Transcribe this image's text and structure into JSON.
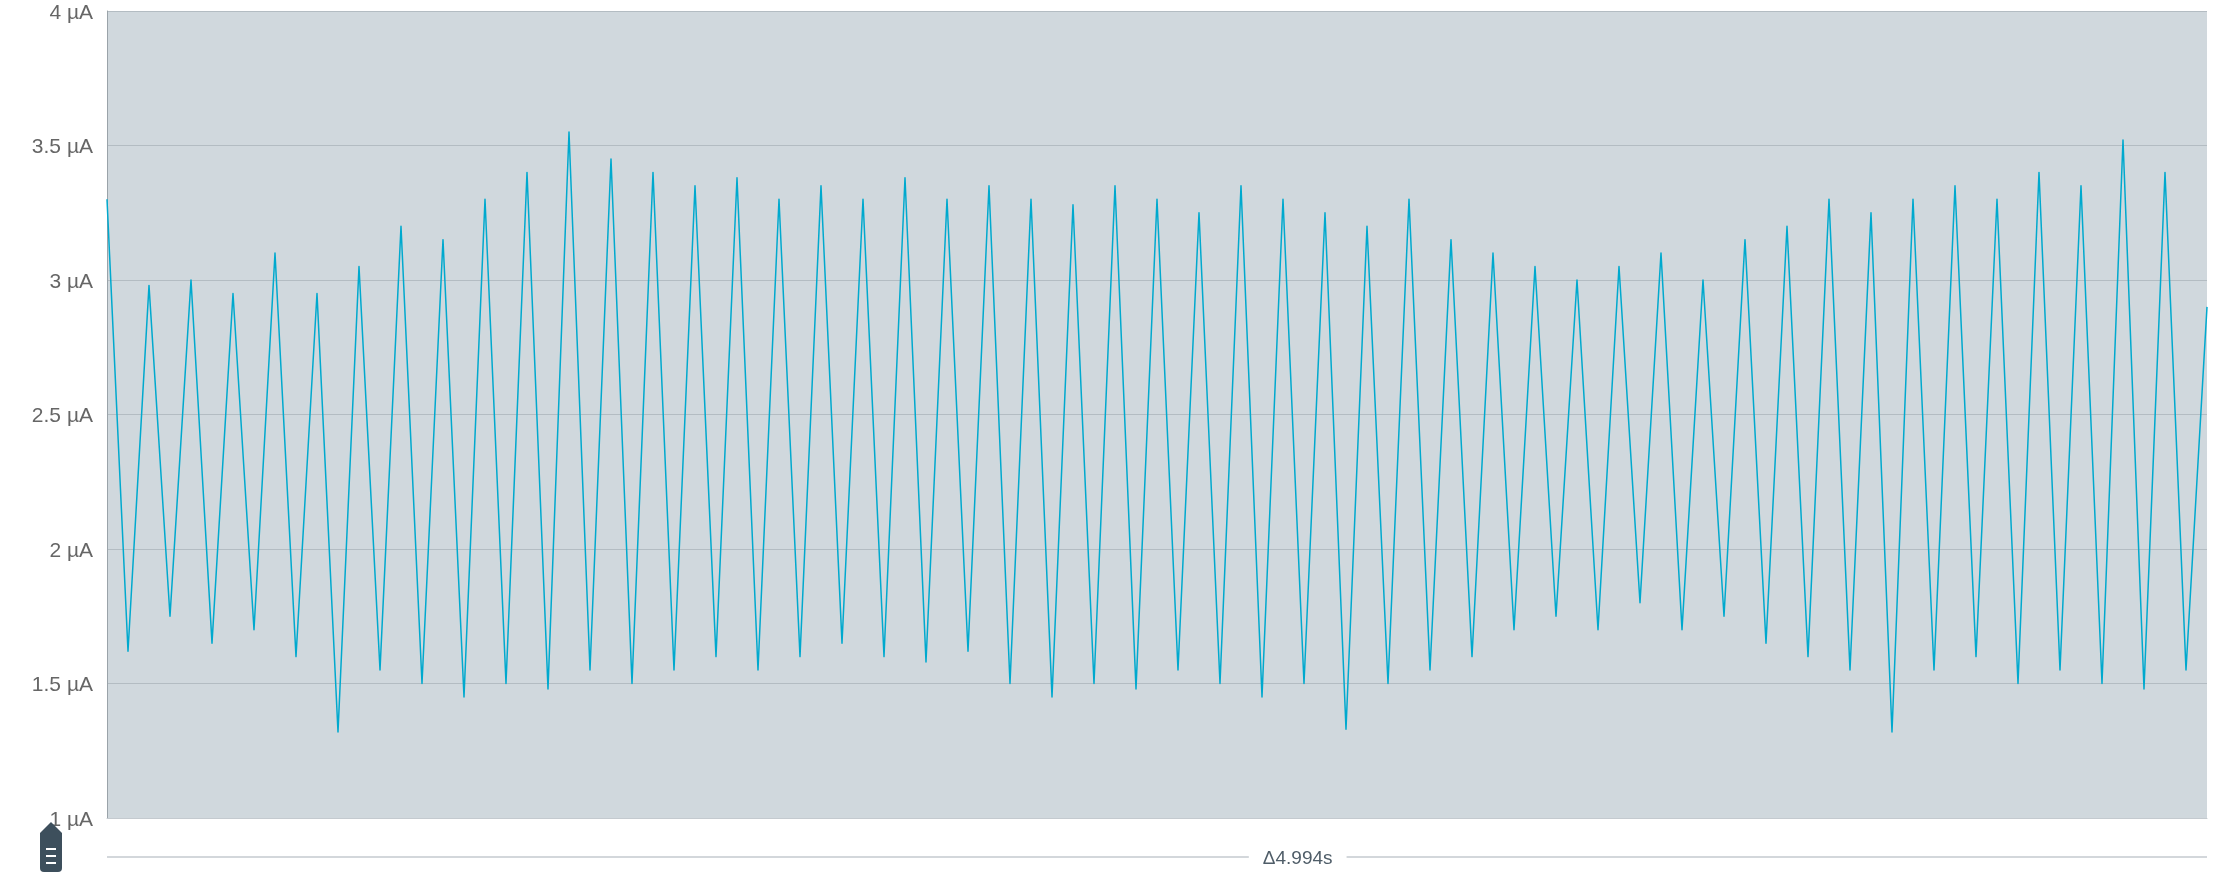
{
  "chart_data": {
    "type": "line",
    "grid": "y",
    "marker": "none",
    "line_style": "solid",
    "tick_labels": "y",
    "annotations": [
      "Δ4.994s"
    ],
    "ylim": [
      1,
      4
    ],
    "yticks": [
      {
        "value": 1,
        "label": "1 µA"
      },
      {
        "value": 1.5,
        "label": "1.5 µA"
      },
      {
        "value": 2,
        "label": "2 µA"
      },
      {
        "value": 2.5,
        "label": "2.5 µA"
      },
      {
        "value": 3,
        "label": "3 µA"
      },
      {
        "value": 3.5,
        "label": "3.5 µA"
      },
      {
        "value": 4,
        "label": "4 µA"
      }
    ],
    "categories": [
      null,
      null,
      null,
      null,
      null,
      null,
      null,
      null,
      null,
      null,
      null,
      null,
      null,
      null,
      null,
      null,
      null,
      null,
      null,
      null,
      null,
      null,
      null,
      null,
      null,
      null,
      null,
      null,
      null,
      null,
      null,
      null,
      null,
      null,
      null,
      null,
      null,
      null,
      null,
      null,
      null,
      null,
      null,
      null,
      null,
      null,
      null,
      null,
      null,
      null,
      null,
      null,
      null,
      null,
      null,
      null,
      null,
      null,
      null,
      null,
      null,
      null,
      null,
      null,
      null,
      null,
      null,
      null,
      null,
      null,
      null,
      null,
      null,
      null,
      null,
      null,
      null,
      null,
      null,
      null,
      null,
      null,
      null,
      null,
      null,
      null,
      null,
      null,
      null,
      null,
      null,
      null,
      null,
      null,
      null,
      null,
      null,
      null,
      null,
      null,
      null
    ],
    "series": [
      {
        "color": "#00a9ce",
        "values": [
          3.3,
          1.62,
          2.98,
          1.75,
          3.0,
          1.65,
          2.95,
          1.7,
          3.1,
          1.6,
          2.95,
          1.32,
          3.05,
          1.55,
          3.2,
          1.5,
          3.15,
          1.45,
          3.3,
          1.5,
          3.4,
          1.48,
          3.55,
          1.55,
          3.45,
          1.5,
          3.4,
          1.55,
          3.35,
          1.6,
          3.38,
          1.55,
          3.3,
          1.6,
          3.35,
          1.65,
          3.3,
          1.6,
          3.38,
          1.58,
          3.3,
          1.62,
          3.35,
          1.5,
          3.3,
          1.45,
          3.28,
          1.5,
          3.35,
          1.48,
          3.3,
          1.55,
          3.25,
          1.5,
          3.35,
          1.45,
          3.3,
          1.5,
          3.25,
          1.33,
          3.2,
          1.5,
          3.3,
          1.55,
          3.15,
          1.6,
          3.1,
          1.7,
          3.05,
          1.75,
          3.0,
          1.7,
          3.05,
          1.8,
          3.1,
          1.7,
          3.0,
          1.75,
          3.15,
          1.65,
          3.2,
          1.6,
          3.3,
          1.55,
          3.25,
          1.32,
          3.3,
          1.55,
          3.35,
          1.6,
          3.3,
          1.5,
          3.4,
          1.55,
          3.35,
          1.5,
          3.52,
          1.48,
          3.4,
          1.55,
          2.9
        ]
      }
    ]
  }
}
